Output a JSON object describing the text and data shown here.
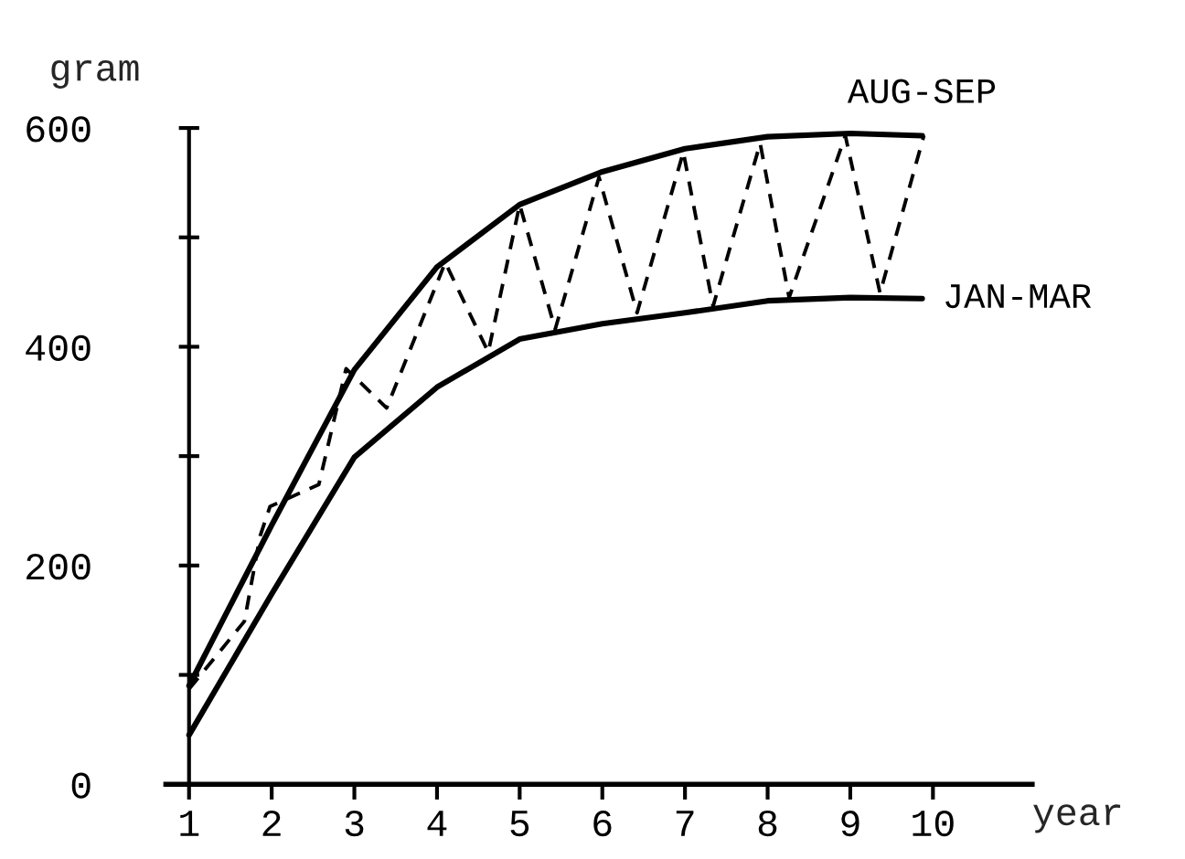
{
  "chart_data": {
    "type": "line",
    "xlabel": "year",
    "ylabel": "gram",
    "xlim": [
      0.72,
      11.2
    ],
    "ylim": [
      0,
      600
    ],
    "xticks": [
      1,
      2,
      3,
      4,
      5,
      6,
      7,
      8,
      9,
      10
    ],
    "yticks": [
      0,
      {
        "value": 100,
        "label": null
      },
      200,
      {
        "value": 300,
        "label": null
      },
      400,
      {
        "value": 500,
        "label": null
      },
      600
    ],
    "grid": false,
    "legend": false,
    "marker": "none",
    "series": [
      {
        "name": "AUG-SEP",
        "color": "#000000",
        "line_style": "solid",
        "x": [
          1,
          2,
          3,
          4,
          5,
          6,
          7,
          8,
          9,
          9.87
        ],
        "values": [
          90,
          237,
          379,
          473,
          530,
          560,
          581,
          592,
          595,
          593
        ]
      },
      {
        "name": "JAN-MAR",
        "color": "#000000",
        "line_style": "solid",
        "x": [
          1,
          2,
          3,
          4,
          5,
          6,
          7,
          8,
          9,
          9.87
        ],
        "values": [
          45,
          174,
          299,
          363,
          407,
          421,
          431,
          442,
          445,
          444
        ]
      },
      {
        "color": "#000000",
        "line_style": "dashed",
        "x": [
          1,
          1.67,
          1.86,
          1.98,
          2.57,
          2.9,
          3.39,
          4.1,
          4.62,
          5.0,
          5.43,
          5.96,
          6.42,
          6.98,
          7.34,
          7.91,
          8.26,
          8.94,
          9.36,
          9.89
        ],
        "values": [
          87,
          149,
          227,
          254,
          274,
          380,
          344,
          477,
          395,
          530,
          416,
          555,
          431,
          578,
          437,
          586,
          445,
          593,
          449,
          593
        ]
      }
    ]
  }
}
